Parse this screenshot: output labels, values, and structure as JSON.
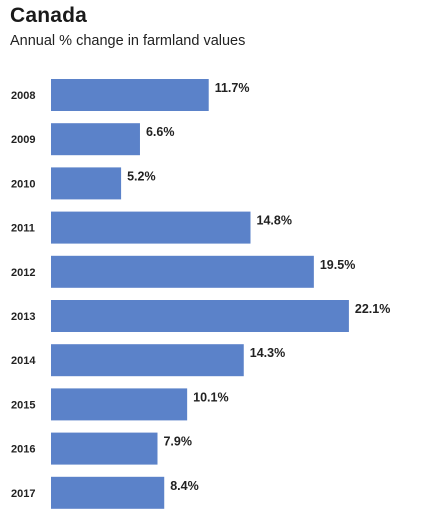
{
  "header": {
    "title": "Canada",
    "subtitle": "Annual % change in farmland values"
  },
  "colors": {
    "bar": "#5b82c9"
  },
  "chart_data": {
    "type": "bar",
    "orientation": "horizontal",
    "title": "Canada",
    "subtitle": "Annual % change in farmland values",
    "categories": [
      "2008",
      "2009",
      "2010",
      "2011",
      "2012",
      "2013",
      "2014",
      "2015",
      "2016",
      "2017"
    ],
    "values": [
      11.7,
      6.6,
      5.2,
      14.8,
      19.5,
      22.1,
      14.3,
      10.1,
      7.9,
      8.4
    ],
    "data_labels": [
      "11.7%",
      "6.6%",
      "5.2%",
      "14.8%",
      "19.5%",
      "22.1%",
      "14.3%",
      "10.1%",
      "7.9%",
      "8.4%"
    ],
    "xlabel": "",
    "ylabel": "",
    "xlim": [
      0,
      25
    ],
    "grid": false,
    "legend": "none"
  }
}
